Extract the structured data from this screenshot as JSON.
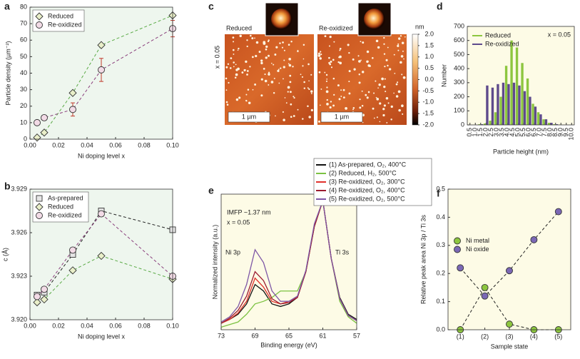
{
  "chart_data": [
    {
      "type": "line",
      "panel_label": "a",
      "xlabel": "Ni doping level x",
      "ylabel": "Particle density (µm⁻²)",
      "x": [
        0.005,
        0.01,
        0.03,
        0.05,
        0.1
      ],
      "xlim": [
        0,
        0.1
      ],
      "xticks": [
        {
          "value": 0,
          "label": "0.00"
        },
        0.02,
        0.04,
        0.06,
        0.08,
        {
          "value": 0.1,
          "label": "0.10"
        }
      ],
      "ylim": [
        0,
        80
      ],
      "yticks": [
        0,
        10,
        20,
        30,
        40,
        50,
        60,
        70,
        80
      ],
      "plot_background": "#eef6ee",
      "legend": "upper left",
      "series": [
        {
          "name": "Reduced",
          "color": "#5aaa46",
          "marker": "diamond",
          "marker_color": "#e9efc9",
          "linestyle": "dashed",
          "values": [
            1,
            4,
            28,
            57,
            75
          ]
        },
        {
          "name": "Re-oxidized",
          "color": "#8a3f7c",
          "marker": "circle",
          "marker_color": "#f2dbe6",
          "linestyle": "dashed",
          "values": [
            10,
            13,
            18,
            42,
            67
          ],
          "errors": [
            1,
            1,
            4,
            7,
            5
          ],
          "error_color": "#c0392b"
        }
      ]
    },
    {
      "type": "line",
      "panel_label": "b",
      "xlabel": "Ni doping level x",
      "ylabel": "c (Å)",
      "x": [
        0.005,
        0.01,
        0.03,
        0.05,
        0.1
      ],
      "xlim": [
        0,
        0.1
      ],
      "xticks": [
        {
          "value": 0,
          "label": "0.00"
        },
        0.02,
        0.04,
        0.06,
        0.08,
        {
          "value": 0.1,
          "label": "0.10"
        }
      ],
      "ylim": [
        3.92,
        3.929
      ],
      "yticks": [
        {
          "value": 3.92,
          "label": "3.920"
        },
        3.923,
        3.926,
        3.929
      ],
      "plot_background": "#eef6ee",
      "legend": "upper left",
      "series": [
        {
          "name": "As-prepared",
          "color": "#222222",
          "marker": "square",
          "marker_color": "#e6e6e6",
          "linestyle": "dashed",
          "values": [
            3.9217,
            3.9219,
            3.9245,
            3.9275,
            3.9262
          ]
        },
        {
          "name": "Reduced",
          "color": "#5aaa46",
          "marker": "diamond",
          "marker_color": "#e9efc9",
          "linestyle": "dashed",
          "values": [
            3.9212,
            3.9214,
            3.9234,
            3.9244,
            3.9228
          ]
        },
        {
          "name": "Re-oxidized",
          "color": "#8a3f7c",
          "marker": "circle",
          "marker_color": "#f2dbe6",
          "linestyle": "dashed",
          "values": [
            3.9216,
            3.9221,
            3.9248,
            3.9273,
            3.923
          ]
        }
      ]
    },
    {
      "type": "image",
      "panel_label": "c",
      "labels": [
        "Reduced",
        "Re-oxidized"
      ],
      "annotation": "x = 0.05",
      "scalebar": [
        "1 µm",
        "1 µm"
      ],
      "colorbar_unit": "nm",
      "clim": [
        -2,
        2
      ],
      "colorbar_ticks": [
        {
          "value": 2,
          "label": "2.0"
        },
        1.5,
        {
          "value": 1,
          "label": "1.0"
        },
        0.5,
        {
          "value": 0,
          "label": "0.0"
        },
        -0.5,
        {
          "value": -1,
          "label": "-1.0"
        },
        -1.5,
        {
          "value": -2,
          "label": "-2.0"
        }
      ]
    },
    {
      "type": "bar",
      "panel_label": "d",
      "xlabel": "Particle height (nm)",
      "ylabel": "Number",
      "categories": [
        "0.5",
        "1.0",
        "1.5",
        "2.0",
        "2.5",
        "3.0",
        "3.5",
        "4.0",
        "4.5",
        "5.0",
        "5.5",
        "6.0",
        "6.5",
        "7.0",
        "7.5",
        "8.0",
        "8.5",
        "9.0",
        "9.5",
        "10.0"
      ],
      "ylim": [
        0,
        700
      ],
      "yticks": [
        0,
        100,
        200,
        300,
        400,
        500,
        600,
        700
      ],
      "plot_background": "#fdfbe6",
      "legend": "upper left",
      "annotations": [
        "x = 0.05"
      ],
      "series": [
        {
          "name": "Reduced",
          "color": "#8dc63f",
          "values": [
            0,
            0,
            5,
            10,
            30,
            90,
            200,
            420,
            600,
            550,
            440,
            330,
            150,
            90,
            40,
            15,
            5,
            2,
            0,
            0
          ]
        },
        {
          "name": "Re-oxidized",
          "color": "#5e4a8c",
          "values": [
            0,
            0,
            5,
            280,
            265,
            290,
            300,
            290,
            300,
            280,
            240,
            200,
            130,
            75,
            40,
            15,
            5,
            0,
            0,
            0
          ]
        }
      ]
    },
    {
      "type": "line",
      "panel_label": "e",
      "xlabel": "Binding energy (eV)",
      "ylabel": "Normalized intensity (a.u.)",
      "x": [
        73,
        72,
        71,
        70,
        69,
        68,
        67,
        66,
        65,
        64,
        63,
        62,
        61,
        60,
        59,
        58,
        57
      ],
      "xlim": [
        73,
        57
      ],
      "xticks": [
        73,
        69,
        65,
        61,
        57
      ],
      "ylim": [
        0,
        1.05
      ],
      "plot_background": "#fdfbe6",
      "legend": "upper right",
      "annotations": [
        "IMFP ~1.37 nm",
        "x = 0.05",
        "Ni 3p",
        "Ti 3s"
      ],
      "series": [
        {
          "name": "(1) As-prepared, O₂, 400°C",
          "color": "#111111",
          "values": [
            0.05,
            0.08,
            0.12,
            0.2,
            0.35,
            0.3,
            0.2,
            0.18,
            0.2,
            0.25,
            0.45,
            0.8,
            1.0,
            0.55,
            0.25,
            0.12,
            0.08
          ]
        },
        {
          "name": "(2) Reduced, H₂, 500°C",
          "color": "#7cc242",
          "values": [
            0.02,
            0.04,
            0.06,
            0.12,
            0.2,
            0.22,
            0.25,
            0.3,
            0.3,
            0.3,
            0.45,
            0.8,
            1.0,
            0.55,
            0.22,
            0.1,
            0.05
          ]
        },
        {
          "name": "(3) Re-oxidized, O₂, 300°C",
          "color": "#e0312b",
          "values": [
            0.05,
            0.08,
            0.13,
            0.22,
            0.4,
            0.33,
            0.22,
            0.2,
            0.22,
            0.25,
            0.45,
            0.8,
            1.0,
            0.55,
            0.24,
            0.11,
            0.07
          ]
        },
        {
          "name": "(4) Re-oxidized, O₂, 400°C",
          "color": "#9b1b30",
          "values": [
            0.05,
            0.09,
            0.15,
            0.26,
            0.45,
            0.38,
            0.24,
            0.2,
            0.21,
            0.25,
            0.45,
            0.8,
            1.0,
            0.55,
            0.24,
            0.11,
            0.07
          ]
        },
        {
          "name": "(5) Re-oxidized, O₂, 500°C",
          "color": "#7e57a6",
          "values": [
            0.06,
            0.1,
            0.18,
            0.35,
            0.62,
            0.52,
            0.3,
            0.22,
            0.22,
            0.26,
            0.46,
            0.82,
            1.0,
            0.55,
            0.24,
            0.11,
            0.07
          ]
        }
      ]
    },
    {
      "type": "line",
      "panel_label": "f",
      "xlabel": "Sample state",
      "ylabel": "Relative peak area Ni 3p / Ti 3s",
      "categories": [
        "(1)",
        "(2)",
        "(3)",
        "(4)",
        "(5)"
      ],
      "ylim": [
        0,
        0.5
      ],
      "yticks": [
        {
          "value": 0,
          "label": "0.0"
        },
        0.1,
        0.2,
        0.3,
        0.4,
        0.5
      ],
      "plot_background": "#fdfbe6",
      "legend": "center left",
      "series": [
        {
          "name": "Ni metal",
          "color": "#222222",
          "marker": "circle",
          "marker_color": "#8dc63f",
          "linestyle": "dashed",
          "values": [
            0,
            0.15,
            0.02,
            0,
            0
          ]
        },
        {
          "name": "Ni oxide",
          "color": "#222222",
          "marker": "circle",
          "marker_color": "#7b68b5",
          "linestyle": "dashed",
          "values": [
            0.22,
            0.12,
            0.21,
            0.32,
            0.42
          ]
        }
      ]
    }
  ]
}
